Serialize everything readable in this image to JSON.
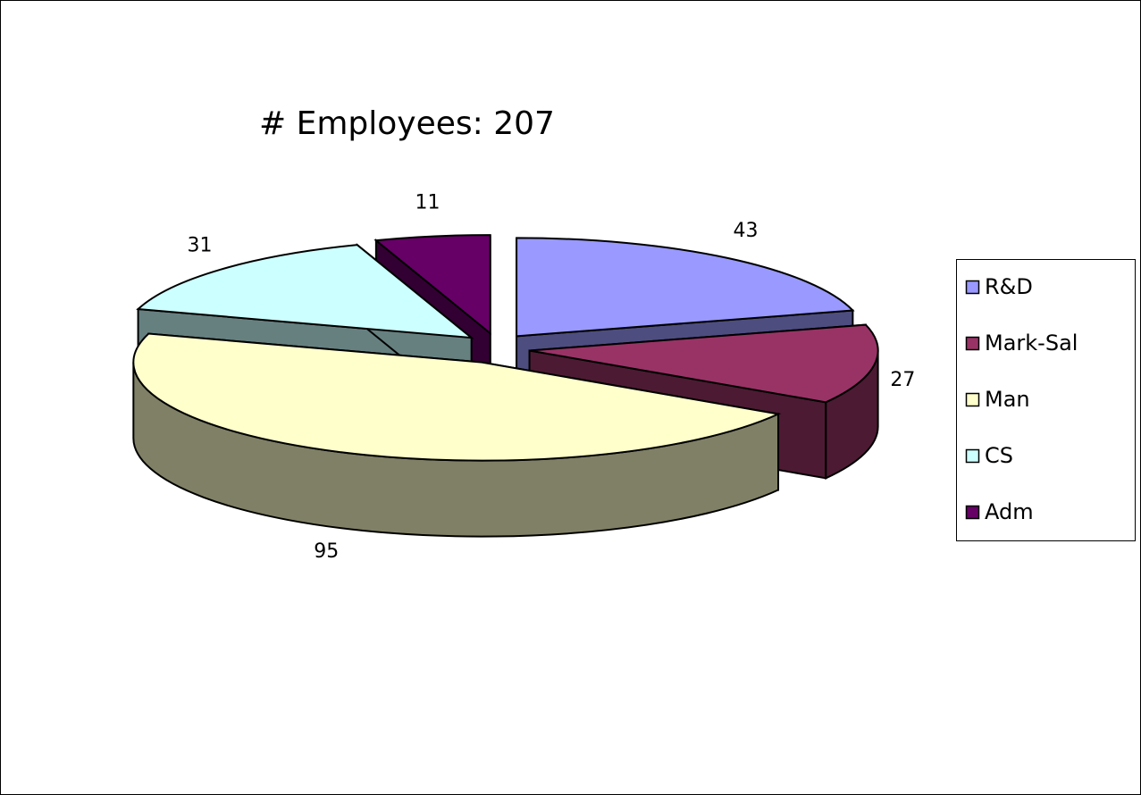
{
  "chart_data": {
    "type": "pie",
    "title": "# Employees:  207",
    "categories": [
      "R&D",
      "Mark-Sal",
      "Man",
      "CS",
      "Adm"
    ],
    "values": [
      43,
      27,
      95,
      31,
      11
    ],
    "colors": [
      "#9999ff",
      "#993366",
      "#ffffcc",
      "#ccffff",
      "#660066"
    ],
    "legend": "right",
    "exploded": true,
    "three_d": true
  }
}
